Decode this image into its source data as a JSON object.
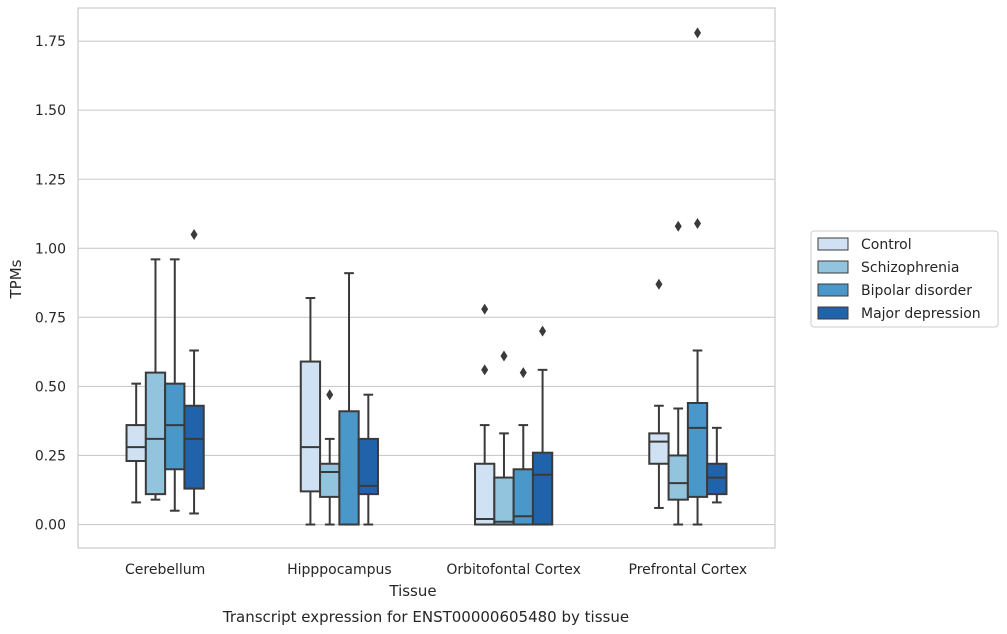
{
  "caption": "Transcript expression for ENST00000605480 by tissue",
  "chart_data": {
    "type": "box",
    "xlabel": "Tissue",
    "ylabel": "TPMs",
    "ylim": [
      -0.085,
      1.87
    ],
    "yticks": [
      0.0,
      0.25,
      0.5,
      0.75,
      1.0,
      1.25,
      1.5,
      1.75
    ],
    "ytick_labels": [
      "0.00",
      "0.25",
      "0.50",
      "0.75",
      "1.00",
      "1.25",
      "1.50",
      "1.75"
    ],
    "grid": "horizontal",
    "legend_position": "right",
    "categories": [
      "Cerebellum",
      "Hipppocampus",
      "Orbitofontal Cortex",
      "Prefrontal Cortex"
    ],
    "series": [
      {
        "name": "Control",
        "color": "#cfe1f2",
        "boxes": [
          {
            "whislo": 0.08,
            "q1": 0.23,
            "med": 0.28,
            "q3": 0.36,
            "whishi": 0.51,
            "fliers": []
          },
          {
            "whislo": 0.0,
            "q1": 0.12,
            "med": 0.28,
            "q3": 0.59,
            "whishi": 0.82,
            "fliers": []
          },
          {
            "whislo": 0.0,
            "q1": 0.0,
            "med": 0.02,
            "q3": 0.22,
            "whishi": 0.36,
            "fliers": [
              0.56,
              0.78
            ]
          },
          {
            "whislo": 0.06,
            "q1": 0.22,
            "med": 0.3,
            "q3": 0.33,
            "whishi": 0.43,
            "fliers": [
              0.87
            ]
          }
        ]
      },
      {
        "name": "Schizophrenia",
        "color": "#93c4de",
        "boxes": [
          {
            "whislo": 0.09,
            "q1": 0.11,
            "med": 0.31,
            "q3": 0.55,
            "whishi": 0.96,
            "fliers": []
          },
          {
            "whislo": 0.0,
            "q1": 0.1,
            "med": 0.19,
            "q3": 0.22,
            "whishi": 0.31,
            "fliers": [
              0.47
            ]
          },
          {
            "whislo": 0.0,
            "q1": 0.0,
            "med": 0.01,
            "q3": 0.17,
            "whishi": 0.33,
            "fliers": [
              0.61
            ]
          },
          {
            "whislo": 0.0,
            "q1": 0.09,
            "med": 0.15,
            "q3": 0.25,
            "whishi": 0.42,
            "fliers": [
              1.08
            ]
          }
        ]
      },
      {
        "name": "Bipolar disorder",
        "color": "#4a98c9",
        "boxes": [
          {
            "whislo": 0.05,
            "q1": 0.2,
            "med": 0.36,
            "q3": 0.51,
            "whishi": 0.96,
            "fliers": []
          },
          {
            "whislo": 0.0,
            "q1": 0.0,
            "med": 0.0,
            "q3": 0.41,
            "whishi": 0.91,
            "fliers": []
          },
          {
            "whislo": 0.0,
            "q1": 0.0,
            "med": 0.03,
            "q3": 0.2,
            "whishi": 0.36,
            "fliers": [
              0.55
            ]
          },
          {
            "whislo": 0.0,
            "q1": 0.1,
            "med": 0.35,
            "q3": 0.44,
            "whishi": 0.63,
            "fliers": [
              1.09,
              1.78
            ]
          }
        ]
      },
      {
        "name": "Major depression",
        "color": "#2163aa",
        "boxes": [
          {
            "whislo": 0.04,
            "q1": 0.13,
            "med": 0.31,
            "q3": 0.43,
            "whishi": 0.63,
            "fliers": [
              1.05
            ]
          },
          {
            "whislo": 0.0,
            "q1": 0.11,
            "med": 0.14,
            "q3": 0.31,
            "whishi": 0.47,
            "fliers": []
          },
          {
            "whislo": 0.0,
            "q1": 0.0,
            "med": 0.18,
            "q3": 0.26,
            "whishi": 0.56,
            "fliers": [
              0.7
            ]
          },
          {
            "whislo": 0.08,
            "q1": 0.11,
            "med": 0.17,
            "q3": 0.22,
            "whishi": 0.35,
            "fliers": []
          }
        ]
      }
    ]
  }
}
